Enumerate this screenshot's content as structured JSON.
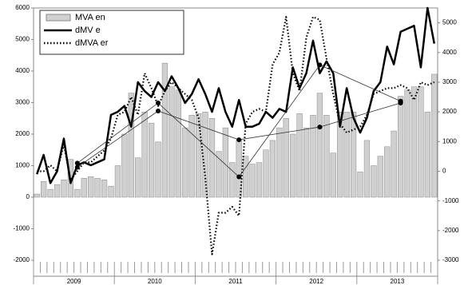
{
  "chart_data": {
    "type": "bar-line",
    "categories": [
      null,
      null,
      null,
      null,
      null,
      null,
      null,
      null,
      null,
      null,
      null,
      null,
      null,
      null,
      null,
      null,
      null,
      null,
      null,
      null,
      null,
      null,
      null,
      null,
      null,
      null,
      null,
      null,
      null,
      null,
      null,
      null,
      null,
      null,
      null,
      null,
      null,
      null,
      null,
      null,
      null,
      null,
      null,
      null,
      null,
      null,
      null,
      null,
      null,
      null,
      null,
      null,
      null,
      null,
      null,
      null,
      null,
      null,
      null,
      null
    ],
    "year_labels": [
      "2009",
      "2010",
      "2011",
      "2012",
      "2013"
    ],
    "series": [
      {
        "name": "MVA en",
        "kind": "bar",
        "color": "#d0d0d0",
        "axis": "y",
        "values": [
          100,
          500,
          250,
          400,
          550,
          1200,
          250,
          600,
          650,
          600,
          550,
          350,
          1000,
          2000,
          3300,
          1250,
          2700,
          2350,
          1750,
          4250,
          3500,
          3400,
          2200,
          2600,
          2650,
          2700,
          2500,
          1450,
          2200,
          1100,
          1800,
          1300,
          1050,
          1100,
          1500,
          1800,
          2200,
          2500,
          2000,
          2650,
          2200,
          2600,
          3300,
          2600,
          1400,
          2700,
          2700,
          2700,
          800,
          1800,
          1000,
          1300,
          1600,
          2100,
          3200,
          3400,
          3500,
          3500,
          2700,
          3900
        ]
      },
      {
        "name": "dMV e",
        "kind": "line",
        "color": "#000000",
        "axis": "y2",
        "values": [
          -100,
          550,
          -400,
          0,
          1100,
          -400,
          200,
          300,
          200,
          300,
          400,
          1900,
          2000,
          2200,
          1500,
          3000,
          2700,
          2500,
          3000,
          2700,
          3200,
          2800,
          2300,
          2600,
          3100,
          2600,
          2000,
          2800,
          2000,
          1500,
          2400,
          1500,
          1500,
          1600,
          2000,
          1800,
          2100,
          2000,
          3500,
          2800,
          3300,
          4400,
          3300,
          3700,
          3300,
          1500,
          2800,
          1800,
          1300,
          1800,
          2700,
          3000,
          4200,
          3600,
          4700,
          4800,
          4900,
          3500,
          5500,
          4300
        ]
      },
      {
        "name": "dMVA er",
        "kind": "dotted",
        "color": "#000000",
        "axis": "y2",
        "values": [
          0,
          0,
          200,
          0,
          900,
          -300,
          0,
          300,
          300,
          500,
          700,
          1100,
          1900,
          2000,
          2500,
          1900,
          3300,
          2800,
          2200,
          2700,
          3000,
          2800,
          2600,
          2400,
          1800,
          -200,
          -2800,
          -1400,
          -1400,
          -1200,
          -1500,
          1600,
          2000,
          2100,
          2000,
          3600,
          4000,
          5200,
          3300,
          2700,
          4500,
          5200,
          5100,
          3800,
          2600,
          1600,
          1300,
          1400,
          1500,
          1900,
          2600,
          2700,
          2800,
          2800,
          2900,
          2800,
          2400,
          3000,
          2900,
          3000
        ]
      }
    ],
    "trend_lines": [
      {
        "x": [
          6,
          18,
          30,
          42,
          54
        ],
        "values": [
          270,
          2300,
          -190,
          3580,
          2360
        ]
      },
      {
        "x": [
          6,
          18,
          30,
          42,
          54
        ],
        "values": [
          135,
          2030,
          1060,
          1490,
          2300
        ]
      }
    ],
    "ylim": [
      -2000,
      6000
    ],
    "yticks": [
      -2000,
      -1000,
      0,
      1000,
      2000,
      3000,
      4000,
      5000,
      6000
    ],
    "y2lim": [
      -3000,
      5500
    ],
    "y2ticks": [
      -3000,
      -2000,
      -1000,
      0,
      1000,
      2000,
      3000,
      4000,
      5000
    ],
    "legend": "top-left"
  }
}
